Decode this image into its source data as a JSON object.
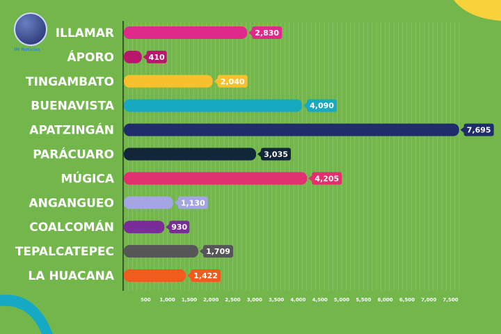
{
  "chart_data": {
    "type": "bar",
    "orientation": "horizontal",
    "categories": [
      "ILLAMAR",
      "ÁPORO",
      "TINGAMBATO",
      "BUENAVISTA",
      "APATZINGÁN",
      "PARÁCUARO",
      "MÚGICA",
      "ANGANGUEO",
      "COALCOMÁN",
      "TEPALCATEPEC",
      "LA HUACANA"
    ],
    "values": [
      2830,
      410,
      2040,
      4090,
      7695,
      3035,
      4205,
      1130,
      930,
      1709,
      1422
    ],
    "value_labels": [
      "2,830",
      "410",
      "2,040",
      "4,090",
      "7,695",
      "3,035",
      "4,205",
      "1,130",
      "930",
      "1,709",
      "1,422"
    ],
    "colors": [
      "#df2a8b",
      "#b9176e",
      "#f7c02e",
      "#17a9bf",
      "#1f2e6b",
      "#12263a",
      "#e0306e",
      "#a3a6e2",
      "#7a2d98",
      "#565656",
      "#ef5c1e"
    ],
    "x_ticks": [
      "500",
      "1,000",
      "1,500",
      "2,000",
      "2,500",
      "3,000",
      "3,500",
      "4,000",
      "4,500",
      "5,000",
      "5,500",
      "6,000",
      "6,500",
      "7,000",
      "7,500"
    ],
    "xlim": [
      0,
      7700
    ],
    "grid": true
  },
  "logo": {
    "text": "IM Noticias"
  },
  "background": "#73b64b"
}
